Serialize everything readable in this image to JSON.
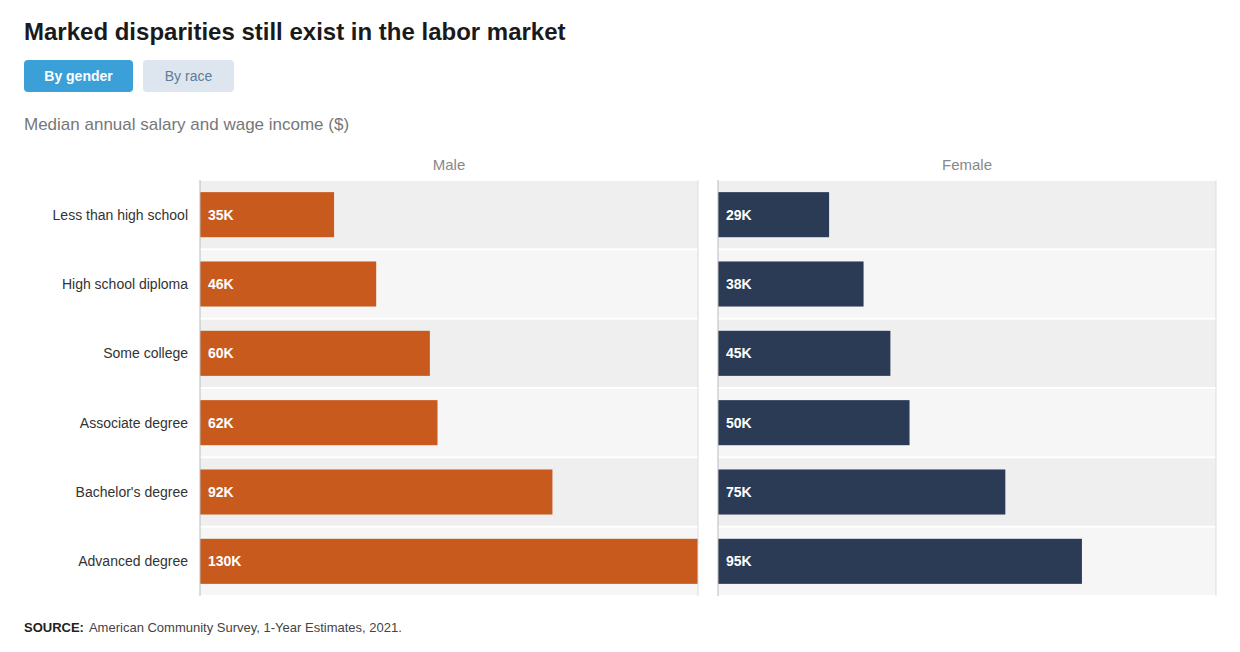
{
  "chart_data": {
    "type": "bar",
    "orientation": "horizontal",
    "title": "Marked disparities still exist in the labor market",
    "subtitle": "Median annual salary and wage income ($)",
    "source_label": "SOURCE:",
    "source": "American Community Survey, 1-Year Estimates, 2021.",
    "buttons": [
      "By gender",
      "By race"
    ],
    "categories": [
      "Less than high school",
      "High school diploma",
      "Some college",
      "Associate degree",
      "Bachelor's degree",
      "Advanced degree"
    ],
    "series": [
      {
        "name": "Male",
        "color": "#C85A1E",
        "values": [
          35,
          46,
          60,
          62,
          92,
          130
        ],
        "value_labels": [
          "35K",
          "46K",
          "60K",
          "62K",
          "92K",
          "130K"
        ]
      },
      {
        "name": "Female",
        "color": "#2C3B55",
        "values": [
          29,
          38,
          45,
          50,
          75,
          95
        ],
        "value_labels": [
          "29K",
          "38K",
          "45K",
          "50K",
          "75K",
          "95K"
        ]
      }
    ],
    "xlim": [
      0,
      130
    ],
    "data_labels": true,
    "tick_labels": "y",
    "grid": false
  }
}
